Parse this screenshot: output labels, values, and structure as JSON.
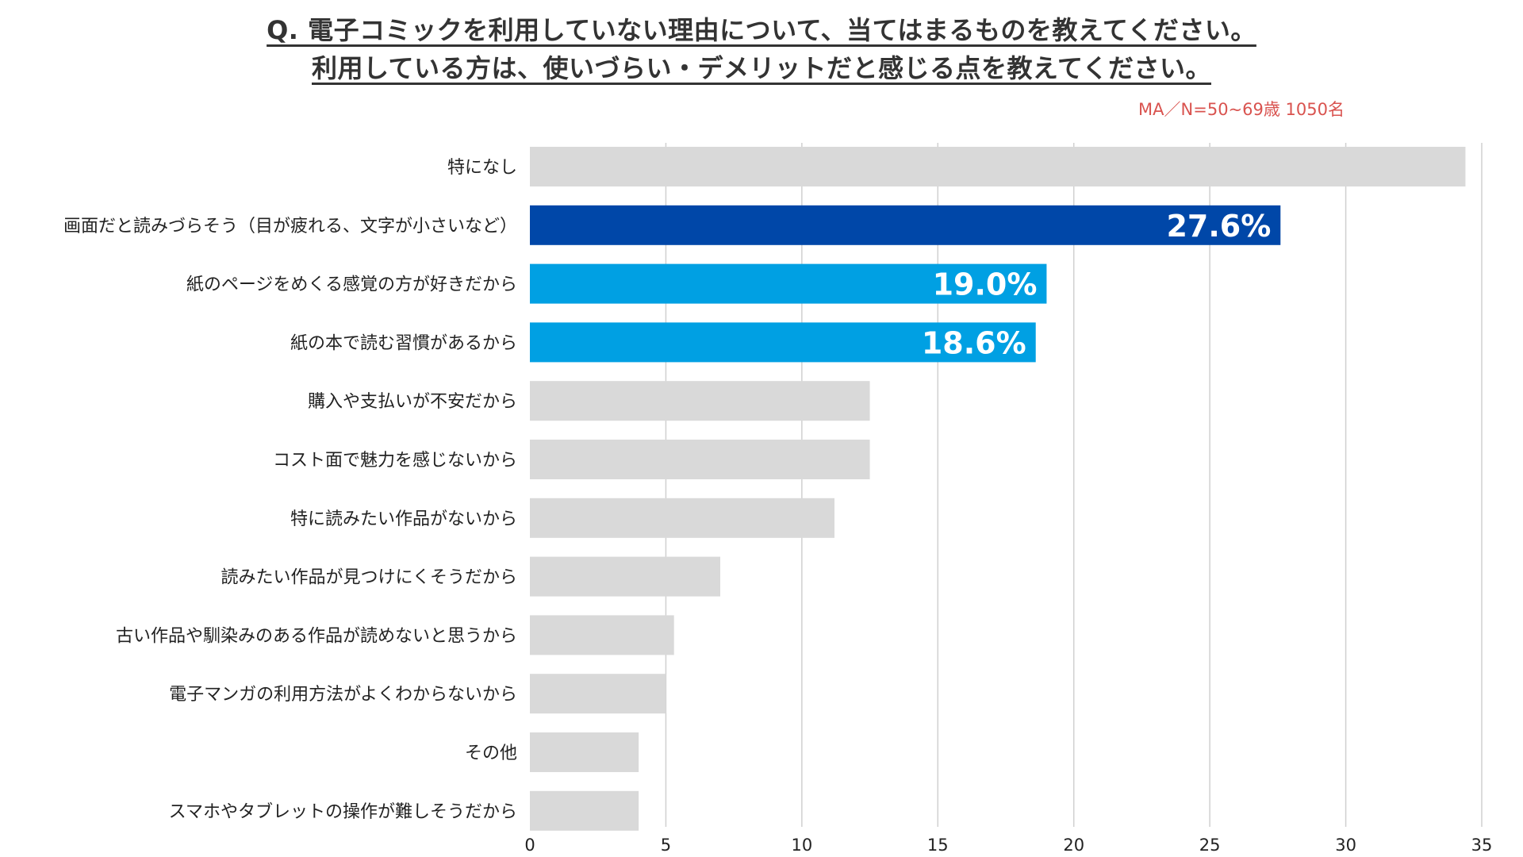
{
  "header": {
    "title_line1": "Q. 電子コミックを利用していない理由について、当てはまるものを教えてください。",
    "title_line2": "利用している方は、使いづらい・デメリットだと感じる点を教えてください。",
    "note": "MA／N=50~69歳 1050名"
  },
  "colors": {
    "default_bar": "#d9d9d9",
    "highlight_1": "#0047a8",
    "highlight_2": "#00a0e3",
    "grid": "#d0d0d0",
    "note": "#d9534f"
  },
  "chart_data": {
    "type": "bar",
    "orientation": "horizontal",
    "categories": [
      "特になし",
      "画面だと読みづらそう（目が疲れる、文字が小さいなど）",
      "紙のページをめくる感覚の方が好きだから",
      "紙の本で読む習慣があるから",
      "購入や支払いが不安だから",
      "コスト面で魅力を感じないから",
      "特に読みたい作品がないから",
      "読みたい作品が見つけにくそうだから",
      "古い作品や馴染みのある作品が読めないと思うから",
      "電子マンガの利用方法がよくわからないから",
      "その他",
      "スマホやタブレットの操作が難しそうだから"
    ],
    "values": [
      34.4,
      27.6,
      19.0,
      18.6,
      12.5,
      12.5,
      11.2,
      7.0,
      5.3,
      5.0,
      4.0,
      4.0
    ],
    "data_labels": [
      "",
      "27.6%",
      "19.0%",
      "18.6%",
      "",
      "",
      "",
      "",
      "",
      "",
      "",
      ""
    ],
    "bar_colors": [
      "#d9d9d9",
      "#0047a8",
      "#00a0e3",
      "#00a0e3",
      "#d9d9d9",
      "#d9d9d9",
      "#d9d9d9",
      "#d9d9d9",
      "#d9d9d9",
      "#d9d9d9",
      "#d9d9d9",
      "#d9d9d9"
    ],
    "xlim": [
      0,
      35
    ],
    "xticks": [
      0,
      5,
      10,
      15,
      20,
      25,
      30,
      35
    ],
    "xtick_labels": [
      "0",
      "5",
      "10",
      "15",
      "20",
      "25",
      "30",
      "35"
    ],
    "grid": "vertical",
    "title": "",
    "xlabel": "",
    "ylabel": ""
  }
}
